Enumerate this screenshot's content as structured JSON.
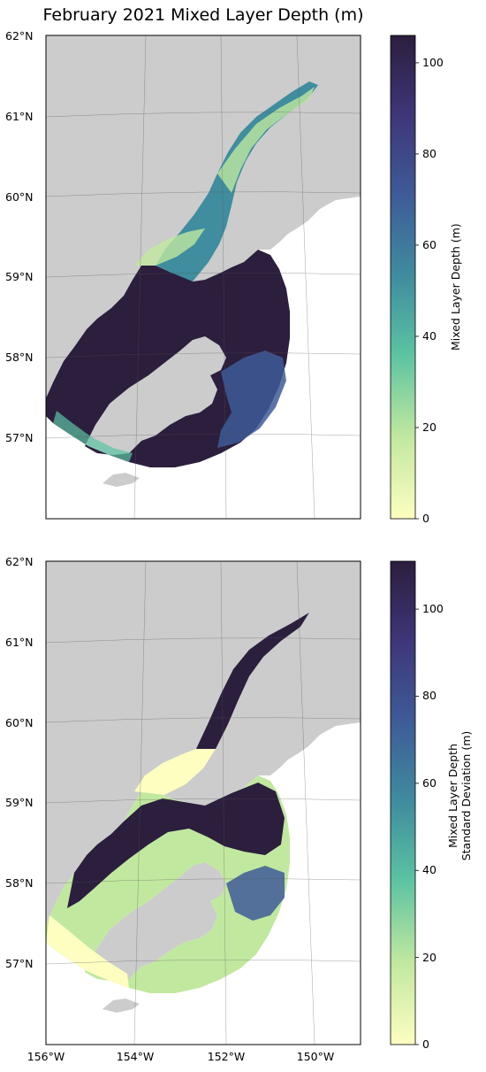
{
  "title": "February 2021 Mixed Layer Depth (m)",
  "colors": {
    "land": "#cccccc",
    "background": "#ffffff",
    "colormap": [
      "#fdfec0",
      "#c1e89f",
      "#5bc3a2",
      "#3f8d9e",
      "#3e5b98",
      "#3e3577",
      "#2c1e3d"
    ]
  },
  "chart_data": [
    {
      "type": "heatmap",
      "name": "mixed-layer-depth",
      "lat_labels": [
        "62°N",
        "61°N",
        "60°N",
        "59°N",
        "58°N",
        "57°N"
      ],
      "lon_labels": [],
      "colorbar": {
        "label": "Mixed Layer Depth (m)",
        "range": [
          0,
          106
        ],
        "ticks": [
          "0",
          "20",
          "40",
          "60",
          "80",
          "100"
        ]
      }
    },
    {
      "type": "heatmap",
      "name": "mixed-layer-depth-std",
      "lat_labels": [
        "62°N",
        "61°N",
        "60°N",
        "59°N",
        "58°N",
        "57°N"
      ],
      "lon_labels": [
        "156°W",
        "154°W",
        "152°W",
        "150°W"
      ],
      "colorbar": {
        "label_line1": "Mixed Layer Depth",
        "label_line2": "Standard Deviation (m)",
        "range": [
          0,
          111
        ],
        "ticks": [
          "0",
          "20",
          "40",
          "60",
          "80",
          "100"
        ]
      }
    }
  ]
}
